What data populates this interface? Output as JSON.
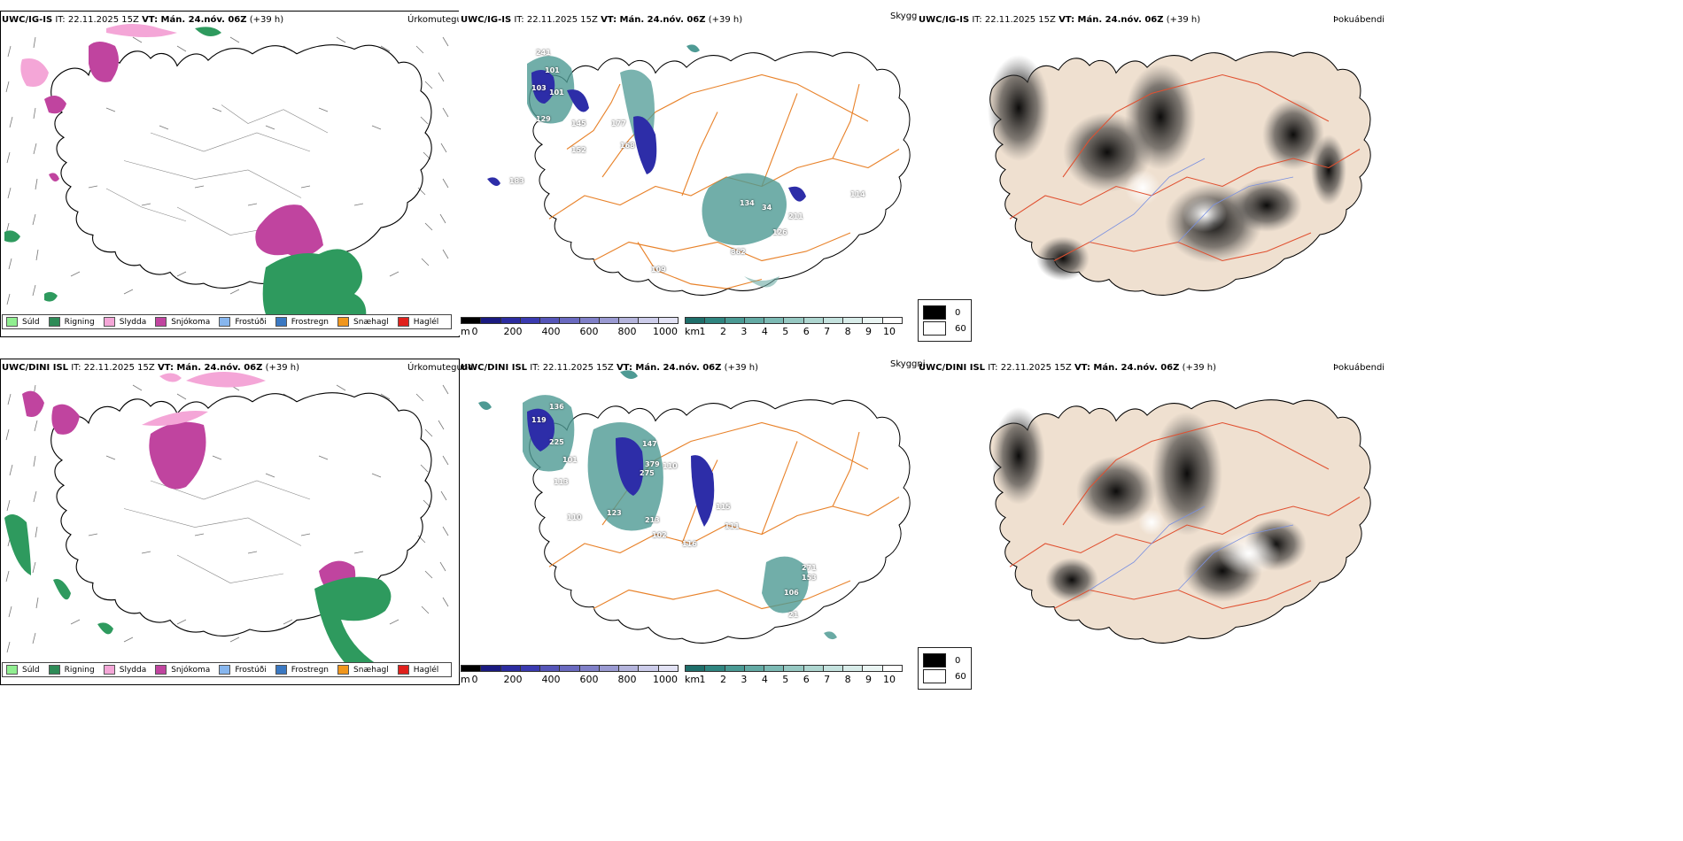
{
  "rows": [
    {
      "model": "UWC/IG-IS",
      "it_label": "IT: 22.11.2025 15Z",
      "vt_label": "VT: Mán. 24.nóv. 06Z",
      "lead": "(+39 h)",
      "precip_title": "Úrkomutegund",
      "vis_title": "Skyggni",
      "fog_title": "Þokuábendi",
      "vis_labels": [
        "241",
        "101",
        "103",
        "101",
        "129",
        "145",
        "152",
        "177",
        "168",
        "183",
        "134",
        "862",
        "211",
        "126",
        "34",
        "109",
        "114"
      ]
    },
    {
      "model": "UWC/DINI ISL",
      "it_label": "IT: 22.11.2025 15Z",
      "vt_label": "VT: Mán. 24.nóv. 06Z",
      "lead": "(+39 h)",
      "precip_title": "Úrkomutegund",
      "vis_title": "Skyggni",
      "fog_title": "Þokuábendi",
      "vis_labels": [
        "136",
        "119",
        "225",
        "101",
        "113",
        "110",
        "123",
        "147",
        "379",
        "275",
        "110",
        "213",
        "102",
        "116",
        "115",
        "111",
        "271",
        "153",
        "106",
        "21"
      ]
    }
  ],
  "precip_legend": [
    {
      "label": "Súld",
      "color": "#90ee90"
    },
    {
      "label": "Rigning",
      "color": "#2e8b57"
    },
    {
      "label": "Slydda",
      "color": "#f4a6d7"
    },
    {
      "label": "Snjókoma",
      "color": "#c0449f"
    },
    {
      "label": "Frostúði",
      "color": "#87b6ee"
    },
    {
      "label": "Frostregn",
      "color": "#3a78c2"
    },
    {
      "label": "Snæhagl",
      "color": "#f0961c"
    },
    {
      "label": "Haglél",
      "color": "#e0201c"
    }
  ],
  "ceiling_bar": {
    "unit": "m",
    "ticks": [
      "0",
      "200",
      "400",
      "600",
      "800",
      "1000"
    ],
    "colors": [
      "#000000",
      "#1a1a80",
      "#2c2ca0",
      "#3a3ab0",
      "#5555b8",
      "#6a6ac0",
      "#8080c8",
      "#9a9ad2",
      "#b4b4dc",
      "#ccccea",
      "#e2e2f4"
    ]
  },
  "vis_bar": {
    "unit": "km",
    "ticks": [
      "1",
      "2",
      "3",
      "4",
      "5",
      "6",
      "7",
      "8",
      "9",
      "10"
    ],
    "colors": [
      "#1e6e6a",
      "#2f8580",
      "#4a9a94",
      "#63aaa4",
      "#7cbab4",
      "#96c8c2",
      "#aed6d0",
      "#c4e2de",
      "#d8ece9",
      "#eaf5f3",
      "#ffffff"
    ]
  },
  "fog_legend": [
    {
      "label": "0",
      "color": "#000000"
    },
    {
      "label": "60",
      "color": "#ffffff"
    }
  ],
  "colors": {
    "coast": "#000000",
    "road": "#e8822a",
    "fog_road": "#e05030",
    "river": "#7a90e0",
    "land_fog": "#efe0d0",
    "rain": "#2e9a5e",
    "snow": "#c0449f",
    "sleet": "#f4a6d7",
    "vis_teal": "#4e9a94",
    "vis_blue": "#2d2da8"
  }
}
